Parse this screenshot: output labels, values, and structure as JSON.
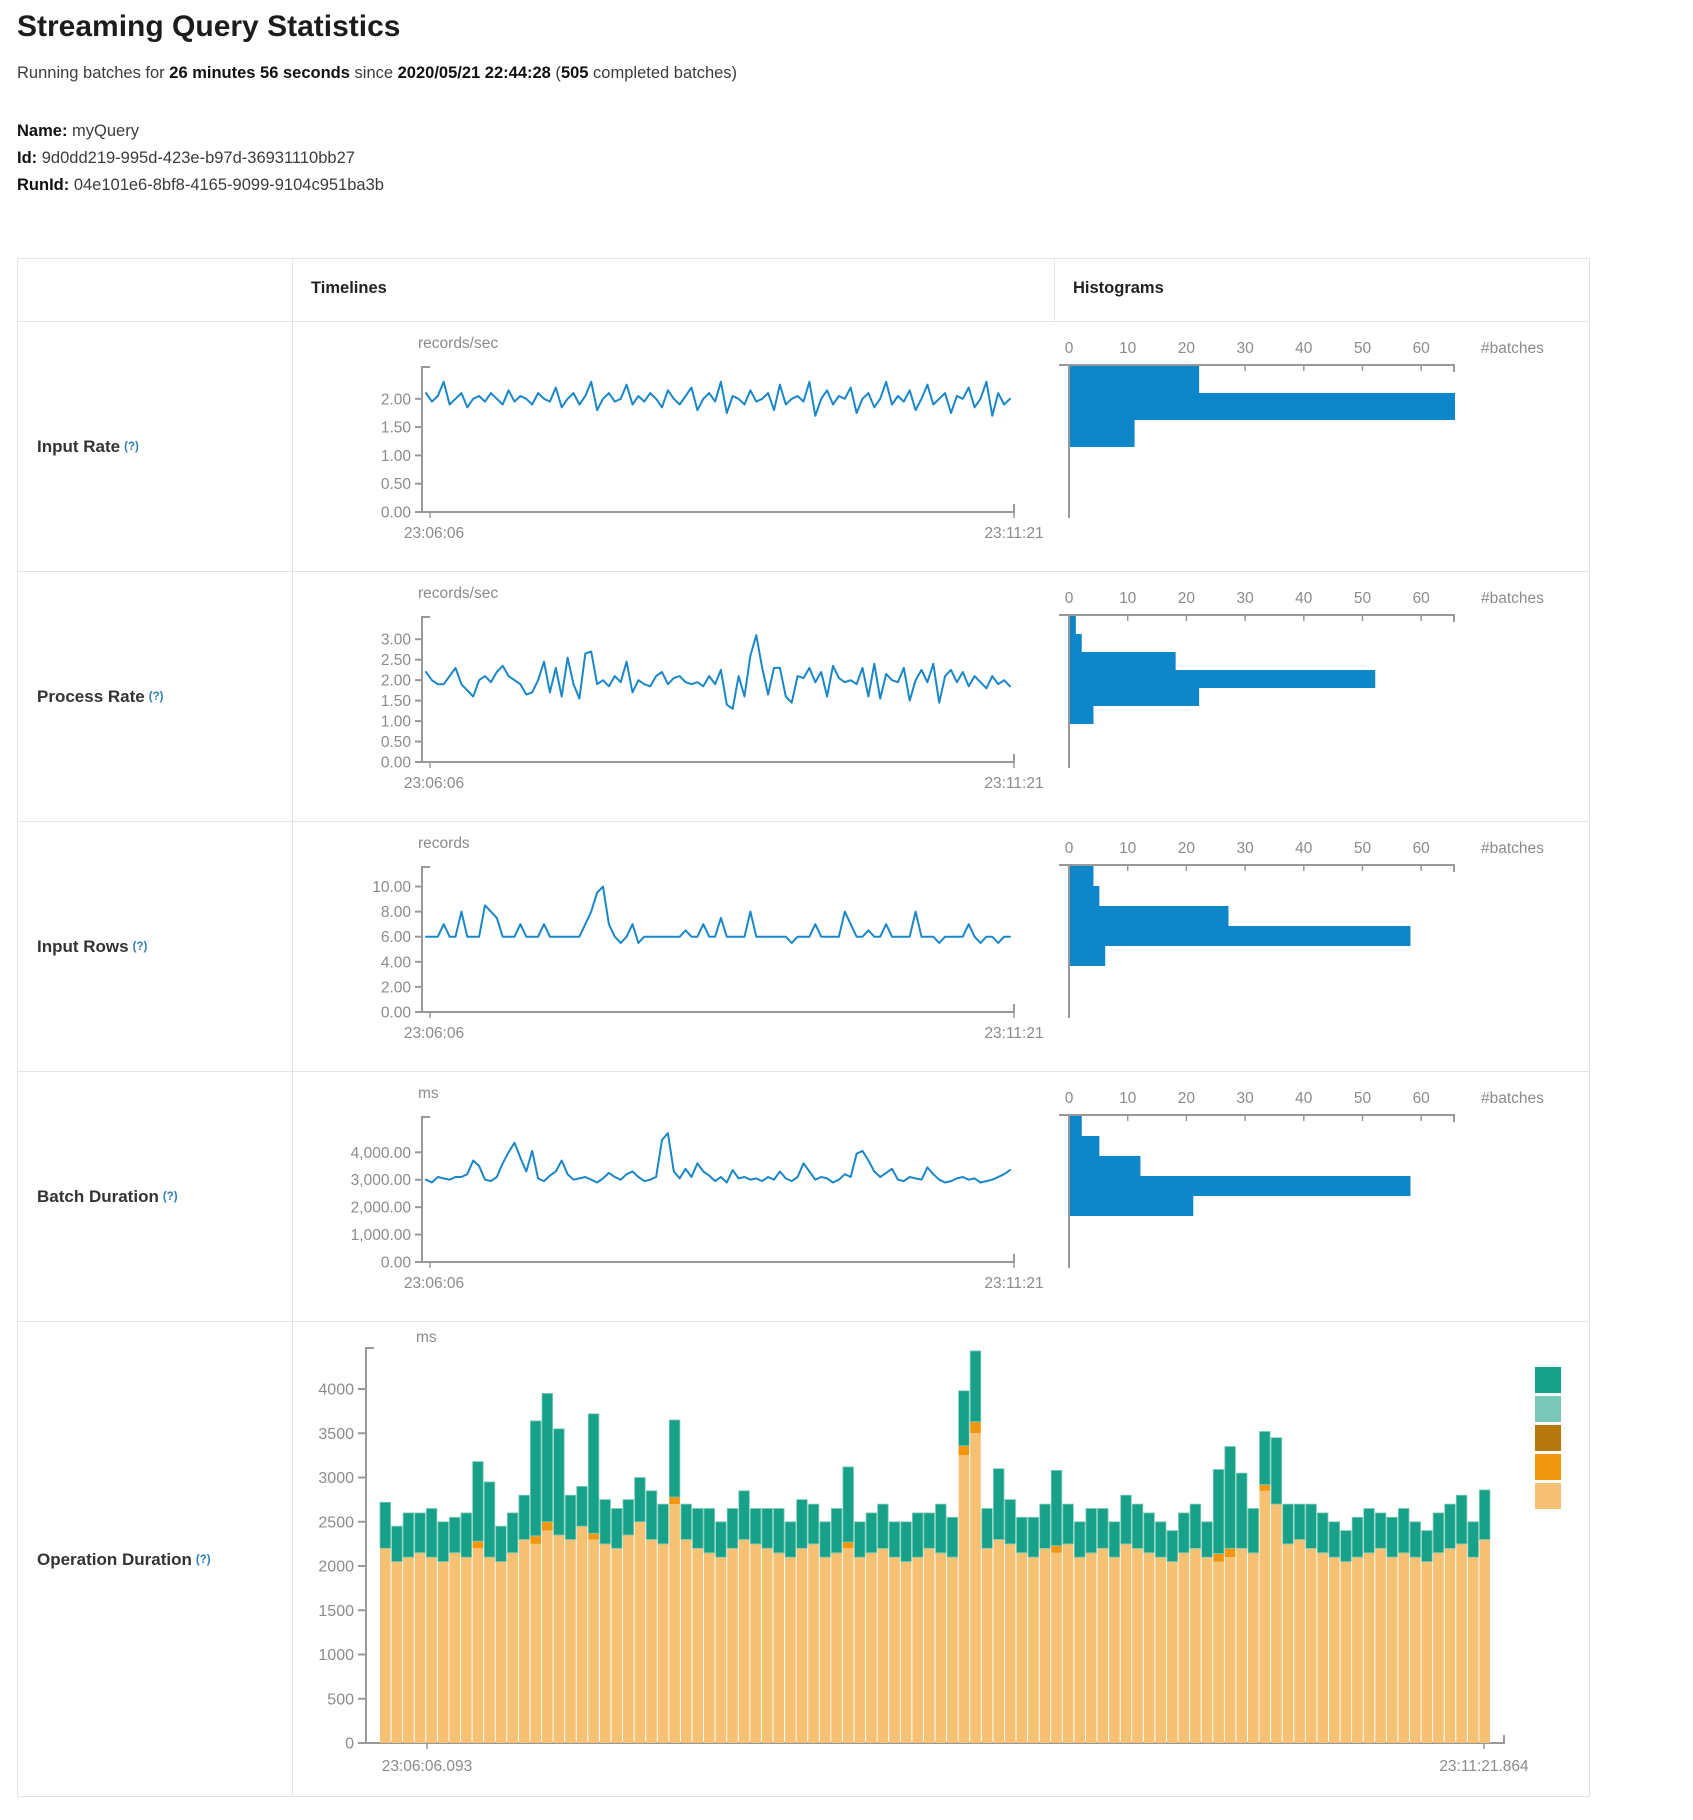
{
  "page": {
    "title": "Streaming Query Statistics",
    "subtitle": {
      "t1": "Running batches for ",
      "b1": "26 minutes 56 seconds",
      "t2": " since ",
      "b2": "2020/05/21 22:44:28",
      "t3": " (",
      "b3": "505",
      "t4": " completed batches)"
    },
    "meta": {
      "name_label": "Name:",
      "name": " myQuery",
      "id_label": "Id:",
      "id": " 9d0dd219-995d-423e-b97d-36931110bb27",
      "runid_label": "RunId:",
      "runid": " 04e101e6-8bf8-4165-9099-9104c951ba3b"
    }
  },
  "table": {
    "col_timelines": "Timelines",
    "col_histograms": "Histograms"
  },
  "colors": {
    "line_blue": "#1a87c8",
    "bar_blue": "#0d87c9",
    "axis_line": "#999999",
    "axis_text": "#8b8b8b",
    "border": "#e4e4e4",
    "op_green": "#18a189",
    "op_green_edge": "#7fcbb9",
    "op_seafoam": "#79c7b7",
    "op_darkgold": "#b5770e",
    "op_orange": "#f0970f",
    "op_tan": "#f6c173"
  },
  "chart_data": {
    "rows": [
      {
        "key": "input-rate",
        "label": "Input Rate",
        "help": "(?)",
        "type": "line",
        "unit": "records/sec",
        "x_start": "23:06:06",
        "x_end": "23:11:21",
        "y_max": 2.35,
        "y_ticks": [
          {
            "v": 2,
            "t": "2.00"
          },
          {
            "v": 1.5,
            "t": "1.50"
          },
          {
            "v": 1,
            "t": "1.00"
          },
          {
            "v": 0.5,
            "t": "0.50"
          },
          {
            "v": 0,
            "t": "0.00"
          }
        ],
        "values": [
          2.1,
          1.95,
          2.05,
          2.3,
          1.9,
          2.0,
          2.1,
          1.85,
          2.0,
          2.05,
          1.95,
          2.1,
          2.0,
          1.9,
          2.15,
          1.95,
          2.05,
          2.0,
          1.9,
          2.1,
          2.0,
          1.95,
          2.2,
          1.85,
          2.0,
          2.1,
          1.9,
          2.05,
          2.3,
          1.8,
          2.0,
          2.1,
          1.95,
          2.0,
          2.25,
          1.9,
          2.05,
          1.95,
          2.1,
          2.0,
          1.85,
          2.15,
          2.0,
          1.9,
          2.05,
          2.2,
          1.8,
          2.0,
          2.1,
          1.95,
          2.3,
          1.75,
          2.05,
          2.0,
          1.9,
          2.15,
          1.95,
          2.0,
          2.1,
          1.8,
          2.25,
          1.9,
          2.0,
          2.05,
          1.95,
          2.3,
          1.7,
          2.0,
          2.15,
          1.9,
          2.05,
          2.0,
          2.2,
          1.75,
          2.0,
          2.1,
          1.85,
          2.0,
          2.3,
          1.9,
          2.05,
          1.95,
          2.15,
          1.8,
          2.0,
          2.25,
          1.9,
          2.0,
          2.1,
          1.75,
          2.05,
          2.0,
          2.2,
          1.85,
          2.0,
          2.3,
          1.7,
          2.1,
          1.9,
          2.0
        ],
        "histogram": {
          "label": "#batches",
          "ticks": [
            0,
            10,
            20,
            30,
            40,
            50,
            60
          ],
          "bins": [
            22,
            67,
            11
          ]
        }
      },
      {
        "key": "process-rate",
        "label": "Process Rate",
        "help": "(?)",
        "type": "line",
        "unit": "records/sec",
        "x_start": "23:06:06",
        "x_end": "23:11:21",
        "y_max": 3.25,
        "y_ticks": [
          {
            "v": 3,
            "t": "3.00"
          },
          {
            "v": 2.5,
            "t": "2.50"
          },
          {
            "v": 2,
            "t": "2.00"
          },
          {
            "v": 1.5,
            "t": "1.50"
          },
          {
            "v": 1,
            "t": "1.00"
          },
          {
            "v": 0.5,
            "t": "0.50"
          },
          {
            "v": 0,
            "t": "0.00"
          }
        ],
        "values": [
          2.2,
          2.0,
          1.9,
          1.9,
          2.1,
          2.3,
          1.9,
          1.75,
          1.6,
          2.0,
          2.1,
          1.95,
          2.2,
          2.35,
          2.1,
          2.0,
          1.9,
          1.65,
          1.7,
          2.0,
          2.45,
          1.7,
          2.3,
          1.6,
          2.55,
          1.9,
          1.55,
          2.65,
          2.7,
          1.9,
          2.0,
          1.85,
          2.1,
          1.95,
          2.45,
          1.7,
          2.0,
          1.9,
          1.85,
          2.1,
          2.2,
          1.9,
          2.05,
          2.1,
          1.95,
          1.9,
          1.95,
          1.85,
          2.1,
          1.9,
          2.25,
          1.4,
          1.3,
          2.1,
          1.6,
          2.6,
          3.1,
          2.3,
          1.65,
          2.3,
          2.3,
          1.6,
          1.45,
          2.1,
          2.05,
          2.3,
          1.95,
          2.2,
          1.6,
          2.35,
          2.05,
          1.95,
          2.0,
          1.9,
          2.3,
          1.6,
          2.4,
          1.55,
          2.15,
          2.0,
          1.95,
          2.3,
          1.5,
          2.0,
          2.25,
          1.95,
          2.4,
          1.45,
          2.1,
          2.25,
          1.95,
          2.2,
          1.85,
          2.1,
          1.95,
          1.8,
          2.1,
          1.9,
          2.0,
          1.85
        ],
        "histogram": {
          "label": "#batches",
          "ticks": [
            0,
            10,
            20,
            30,
            40,
            50,
            60
          ],
          "bins": [
            1,
            2,
            18,
            52,
            22,
            4
          ]
        }
      },
      {
        "key": "input-rows",
        "label": "Input Rows",
        "help": "(?)",
        "type": "line",
        "unit": "records",
        "x_start": "23:06:06",
        "x_end": "23:11:21",
        "y_max": 10.6,
        "y_ticks": [
          {
            "v": 10,
            "t": "10.00"
          },
          {
            "v": 8,
            "t": "8.00"
          },
          {
            "v": 6,
            "t": "6.00"
          },
          {
            "v": 4,
            "t": "4.00"
          },
          {
            "v": 2,
            "t": "2.00"
          },
          {
            "v": 0,
            "t": "0.00"
          }
        ],
        "values": [
          6,
          6,
          6,
          7,
          6,
          6,
          8,
          6,
          6,
          6,
          8.5,
          8,
          7.5,
          6,
          6,
          6,
          7,
          6,
          6,
          6,
          7,
          6,
          6,
          6,
          6,
          6,
          6,
          7,
          8,
          9.5,
          10,
          7,
          6,
          5.5,
          6,
          7,
          5.5,
          6,
          6,
          6,
          6,
          6,
          6,
          6,
          6.5,
          6,
          6,
          7,
          6,
          6,
          7.5,
          6,
          6,
          6,
          6,
          8,
          6,
          6,
          6,
          6,
          6,
          6,
          5.5,
          6,
          6,
          6,
          7,
          6,
          6,
          6,
          6,
          8,
          7,
          6,
          6,
          6.5,
          6,
          6,
          7,
          6,
          6,
          6,
          6,
          8,
          6,
          6,
          6,
          5.5,
          6,
          6,
          6,
          6,
          7,
          6,
          5.5,
          6,
          6,
          5.5,
          6,
          6
        ],
        "histogram": {
          "label": "#batches",
          "ticks": [
            0,
            10,
            20,
            30,
            40,
            50,
            60
          ],
          "bins": [
            4,
            5,
            27,
            58,
            6
          ]
        }
      },
      {
        "key": "batch-duration",
        "label": "Batch Duration",
        "help": "(?)",
        "type": "line",
        "unit": "ms",
        "x_start": "23:06:06",
        "x_end": "23:11:21",
        "y_max": 4850,
        "y_ticks": [
          {
            "v": 4000,
            "t": "4,000.00"
          },
          {
            "v": 3000,
            "t": "3,000.00"
          },
          {
            "v": 2000,
            "t": "2,000.00"
          },
          {
            "v": 1000,
            "t": "1,000.00"
          },
          {
            "v": 0,
            "t": "0.00"
          }
        ],
        "values": [
          3000,
          2900,
          3100,
          3050,
          3000,
          3100,
          3100,
          3200,
          3700,
          3500,
          3000,
          2950,
          3100,
          3600,
          4000,
          4350,
          3800,
          3300,
          4050,
          3050,
          2950,
          3150,
          3300,
          3700,
          3200,
          3000,
          3050,
          3100,
          3000,
          2900,
          3050,
          3250,
          3100,
          3000,
          3200,
          3300,
          3100,
          2950,
          3000,
          3100,
          4450,
          4700,
          3300,
          3050,
          3400,
          3100,
          3600,
          3300,
          3150,
          2950,
          3100,
          2900,
          3350,
          3050,
          3100,
          3000,
          3050,
          2950,
          3100,
          3000,
          3300,
          3050,
          2950,
          3100,
          3600,
          3300,
          3000,
          3100,
          3050,
          2900,
          3000,
          3200,
          3100,
          3950,
          4050,
          3700,
          3300,
          3100,
          3250,
          3400,
          3000,
          2950,
          3100,
          3050,
          3000,
          3450,
          3200,
          3000,
          2900,
          2950,
          3050,
          3100,
          3000,
          3050,
          2900,
          2950,
          3000,
          3100,
          3200,
          3350
        ],
        "histogram": {
          "label": "#batches",
          "ticks": [
            0,
            10,
            20,
            30,
            40,
            50,
            60
          ],
          "bins": [
            2,
            5,
            12,
            58,
            21
          ]
        }
      }
    ],
    "operation": {
      "key": "operation-duration",
      "label": "Operation Duration",
      "help": "(?)",
      "type": "stacked-bar",
      "unit": "ms",
      "x_start": "23:06:06.093",
      "x_end": "23:11:21.864",
      "y_max": 4000,
      "y_ticks": [
        {
          "v": 4000,
          "t": "4000"
        },
        {
          "v": 3500,
          "t": "3500"
        },
        {
          "v": 3000,
          "t": "3000"
        },
        {
          "v": 2500,
          "t": "2500"
        },
        {
          "v": 2000,
          "t": "2000"
        },
        {
          "v": 1500,
          "t": "1500"
        },
        {
          "v": 1000,
          "t": "1000"
        },
        {
          "v": 500,
          "t": "500"
        },
        {
          "v": 0,
          "t": "0"
        }
      ],
      "series": [
        {
          "name": "base-segment",
          "color_key": "op_tan",
          "values": [
            2200,
            2050,
            2100,
            2150,
            2100,
            2050,
            2150,
            2100,
            2200,
            2100,
            2050,
            2150,
            2300,
            2250,
            2400,
            2350,
            2300,
            2450,
            2300,
            2250,
            2200,
            2350,
            2500,
            2300,
            2250,
            2700,
            2300,
            2200,
            2150,
            2100,
            2200,
            2300,
            2250,
            2200,
            2150,
            2100,
            2200,
            2250,
            2100,
            2150,
            2200,
            2100,
            2150,
            2200,
            2100,
            2050,
            2100,
            2200,
            2150,
            2100,
            3250,
            3500,
            2200,
            2300,
            2250,
            2150,
            2100,
            2200,
            2150,
            2250,
            2100,
            2150,
            2200,
            2100,
            2250,
            2200,
            2150,
            2100,
            2050,
            2150,
            2200,
            2100,
            2050,
            2100,
            2200,
            2150,
            2850,
            2700,
            2250,
            2300,
            2200,
            2150,
            2100,
            2050,
            2100,
            2150,
            2200,
            2100,
            2150,
            2100,
            2050,
            2150,
            2200,
            2250,
            2100,
            2300
          ]
        },
        {
          "name": "mid-segment",
          "color_key": "op_orange",
          "values": [
            0,
            0,
            0,
            0,
            0,
            0,
            0,
            0,
            80,
            0,
            0,
            0,
            0,
            90,
            100,
            0,
            0,
            0,
            70,
            0,
            0,
            0,
            0,
            0,
            0,
            80,
            0,
            0,
            0,
            0,
            0,
            0,
            0,
            0,
            0,
            0,
            0,
            0,
            0,
            0,
            70,
            0,
            0,
            0,
            0,
            0,
            0,
            0,
            0,
            0,
            110,
            130,
            0,
            0,
            0,
            0,
            0,
            0,
            80,
            0,
            0,
            0,
            0,
            0,
            0,
            0,
            0,
            0,
            0,
            0,
            0,
            0,
            90,
            100,
            0,
            0,
            70,
            0,
            0,
            0,
            0,
            0,
            0,
            0,
            0,
            0,
            0,
            0,
            0,
            0,
            0,
            0,
            0,
            0,
            0,
            0
          ]
        },
        {
          "name": "top-segment",
          "color_key": "op_green",
          "values": [
            520,
            400,
            500,
            450,
            550,
            450,
            400,
            500,
            900,
            850,
            400,
            450,
            500,
            1300,
            1450,
            1200,
            500,
            450,
            1350,
            500,
            450,
            400,
            500,
            550,
            450,
            870,
            400,
            450,
            500,
            400,
            450,
            550,
            400,
            450,
            500,
            400,
            550,
            450,
            400,
            500,
            850,
            400,
            450,
            500,
            400,
            450,
            500,
            400,
            550,
            450,
            620,
            800,
            450,
            800,
            500,
            400,
            450,
            500,
            850,
            450,
            400,
            500,
            450,
            400,
            550,
            500,
            450,
            400,
            350,
            450,
            500,
            400,
            950,
            1150,
            850,
            500,
            600,
            750,
            450,
            400,
            500,
            450,
            400,
            350,
            450,
            500,
            400,
            450,
            500,
            400,
            350,
            450,
            500,
            550,
            400,
            560
          ]
        }
      ],
      "legend_color_keys": [
        "op_green",
        "op_seafoam",
        "op_darkgold",
        "op_orange",
        "op_tan"
      ]
    }
  }
}
